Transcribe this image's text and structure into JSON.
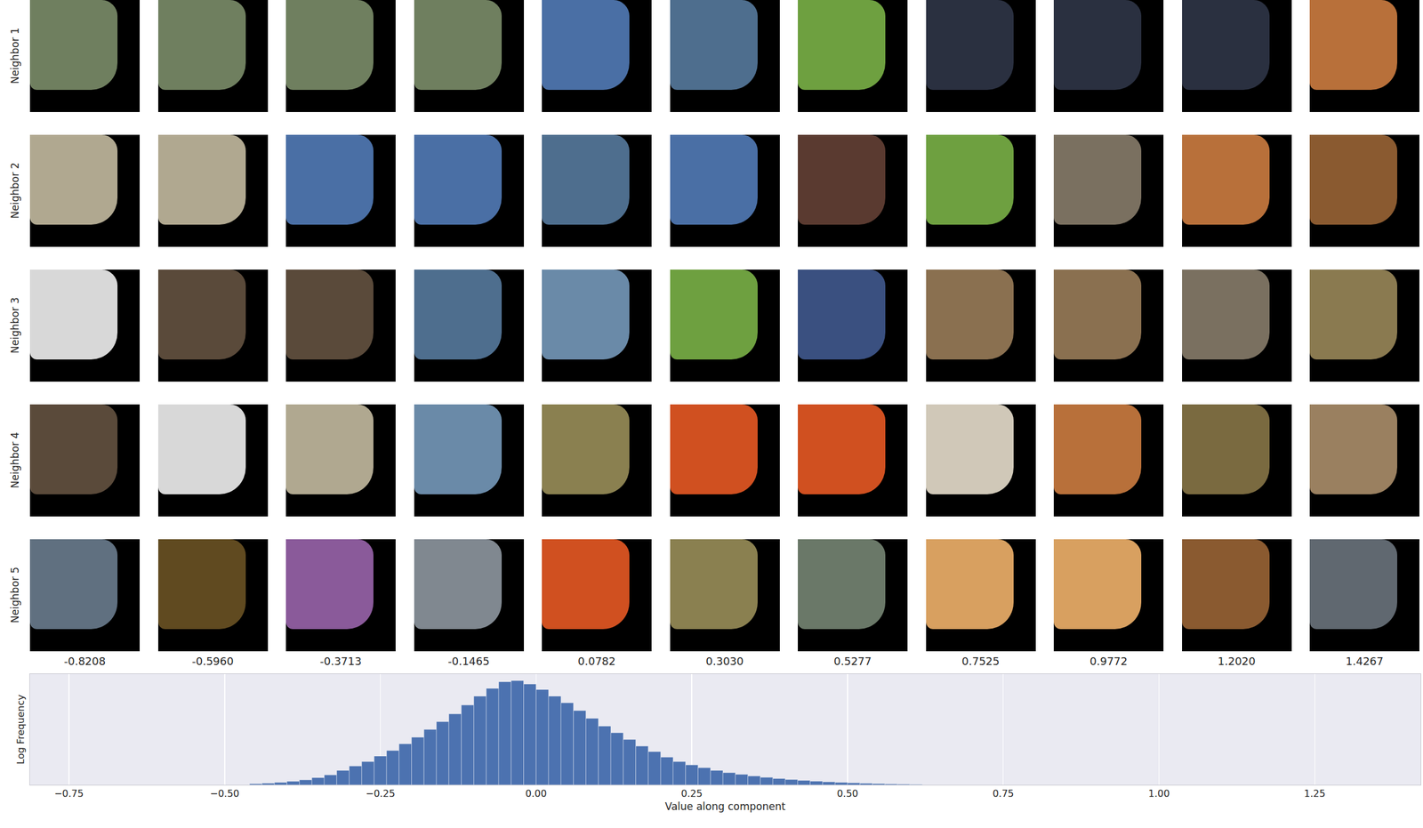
{
  "chart_data": {
    "type": "histogram",
    "x_label": "Value along component",
    "y_label": "Log Frequency",
    "color": "#4c72b0",
    "bins": [
      -0.46,
      -0.44,
      -0.42,
      -0.4,
      -0.38,
      -0.36,
      -0.34,
      -0.32,
      -0.3,
      -0.28,
      -0.26,
      -0.24,
      -0.22,
      -0.2,
      -0.18,
      -0.16,
      -0.14,
      -0.12,
      -0.1,
      -0.08,
      -0.06,
      -0.04,
      -0.02,
      0.0,
      0.02,
      0.04,
      0.06,
      0.08,
      0.1,
      0.12,
      0.14,
      0.16,
      0.18,
      0.2,
      0.22,
      0.24,
      0.26,
      0.28,
      0.3,
      0.32,
      0.34,
      0.36,
      0.38,
      0.4,
      0.42,
      0.44,
      0.46,
      0.48,
      0.5,
      0.52,
      0.54,
      0.56,
      0.58,
      0.6,
      0.62
    ],
    "values": [
      0.01,
      0.015,
      0.022,
      0.032,
      0.045,
      0.065,
      0.09,
      0.13,
      0.17,
      0.21,
      0.26,
      0.31,
      0.37,
      0.43,
      0.5,
      0.57,
      0.64,
      0.72,
      0.8,
      0.87,
      0.93,
      0.94,
      0.91,
      0.86,
      0.8,
      0.74,
      0.67,
      0.6,
      0.53,
      0.47,
      0.41,
      0.35,
      0.3,
      0.25,
      0.21,
      0.18,
      0.155,
      0.13,
      0.11,
      0.095,
      0.08,
      0.068,
      0.057,
      0.048,
      0.04,
      0.033,
      0.027,
      0.022,
      0.018,
      0.014,
      0.011,
      0.008,
      0.006,
      0.004
    ],
    "xlim": [
      -0.8125,
      1.42
    ],
    "xticks": [
      {
        "value": -0.75,
        "label": "−0.75"
      },
      {
        "value": -0.5,
        "label": "−0.50"
      },
      {
        "value": -0.25,
        "label": "−0.25"
      },
      {
        "value": 0,
        "label": "0.00"
      },
      {
        "value": 0.25,
        "label": "0.25"
      },
      {
        "value": 0.5,
        "label": "0.50"
      },
      {
        "value": 0.75,
        "label": "0.75"
      },
      {
        "value": 1,
        "label": "1.00"
      },
      {
        "value": 1.25,
        "label": "1.25"
      }
    ],
    "ylim": [
      0,
      1
    ],
    "yticks": [],
    "grid": true,
    "tick_labels": "x"
  },
  "thumbnails": {
    "row_labels": [
      "Neighbor 1",
      "Neighbor 2",
      "Neighbor 3",
      "Neighbor 4",
      "Neighbor 5"
    ],
    "column_labels": [
      "-0.8208",
      "-0.5960",
      "-0.3713",
      "-0.1465",
      "0.0782",
      "0.3030",
      "0.5277",
      "0.7525",
      "0.9772",
      "1.2020",
      "1.4267"
    ]
  }
}
